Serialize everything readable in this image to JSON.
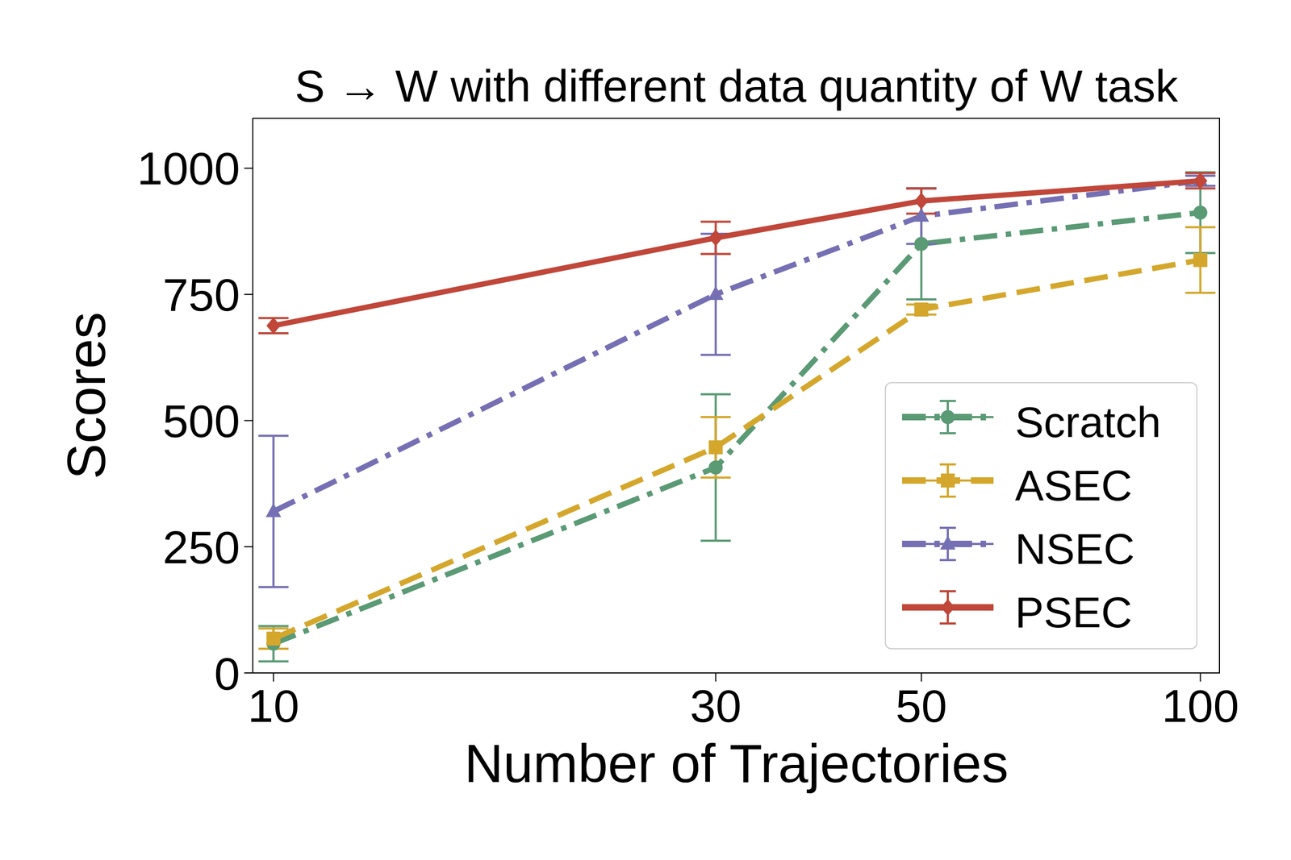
{
  "chart_data": {
    "type": "line",
    "title": "S → W with different data quantity of W task",
    "x_label": "Number of Trajectories",
    "y_label": "Scores",
    "x": [
      10,
      30,
      50,
      100
    ],
    "xlim": [
      9.5,
      105
    ],
    "xticks": [
      10,
      30,
      50,
      100
    ],
    "log": "x",
    "ylim": [
      0,
      1100
    ],
    "yticks": [
      0,
      250,
      500,
      750,
      1000
    ],
    "grid": false,
    "legend": "lower right",
    "series": [
      {
        "name": "Scratch",
        "color": "#5a9a74",
        "line_style": "dashdot",
        "marker": "circle",
        "values": [
          58,
          407,
          850,
          912
        ],
        "error": [
          35,
          145,
          110,
          80
        ]
      },
      {
        "name": "ASEC",
        "color": "#d4a72c",
        "line_style": "dashed",
        "marker": "square",
        "values": [
          68,
          447,
          720,
          818
        ],
        "error": [
          20,
          60,
          10,
          65
        ]
      },
      {
        "name": "NSEC",
        "color": "#7570b3",
        "line_style": "dashdot",
        "marker": "triangle",
        "values": [
          320,
          750,
          905,
          975
        ],
        "error": [
          150,
          120,
          55,
          10
        ]
      },
      {
        "name": "PSEC",
        "color": "#c0473a",
        "line_style": "solid",
        "marker": "diamond",
        "values": [
          688,
          862,
          935,
          975
        ],
        "error": [
          15,
          32,
          25,
          15
        ]
      }
    ]
  }
}
